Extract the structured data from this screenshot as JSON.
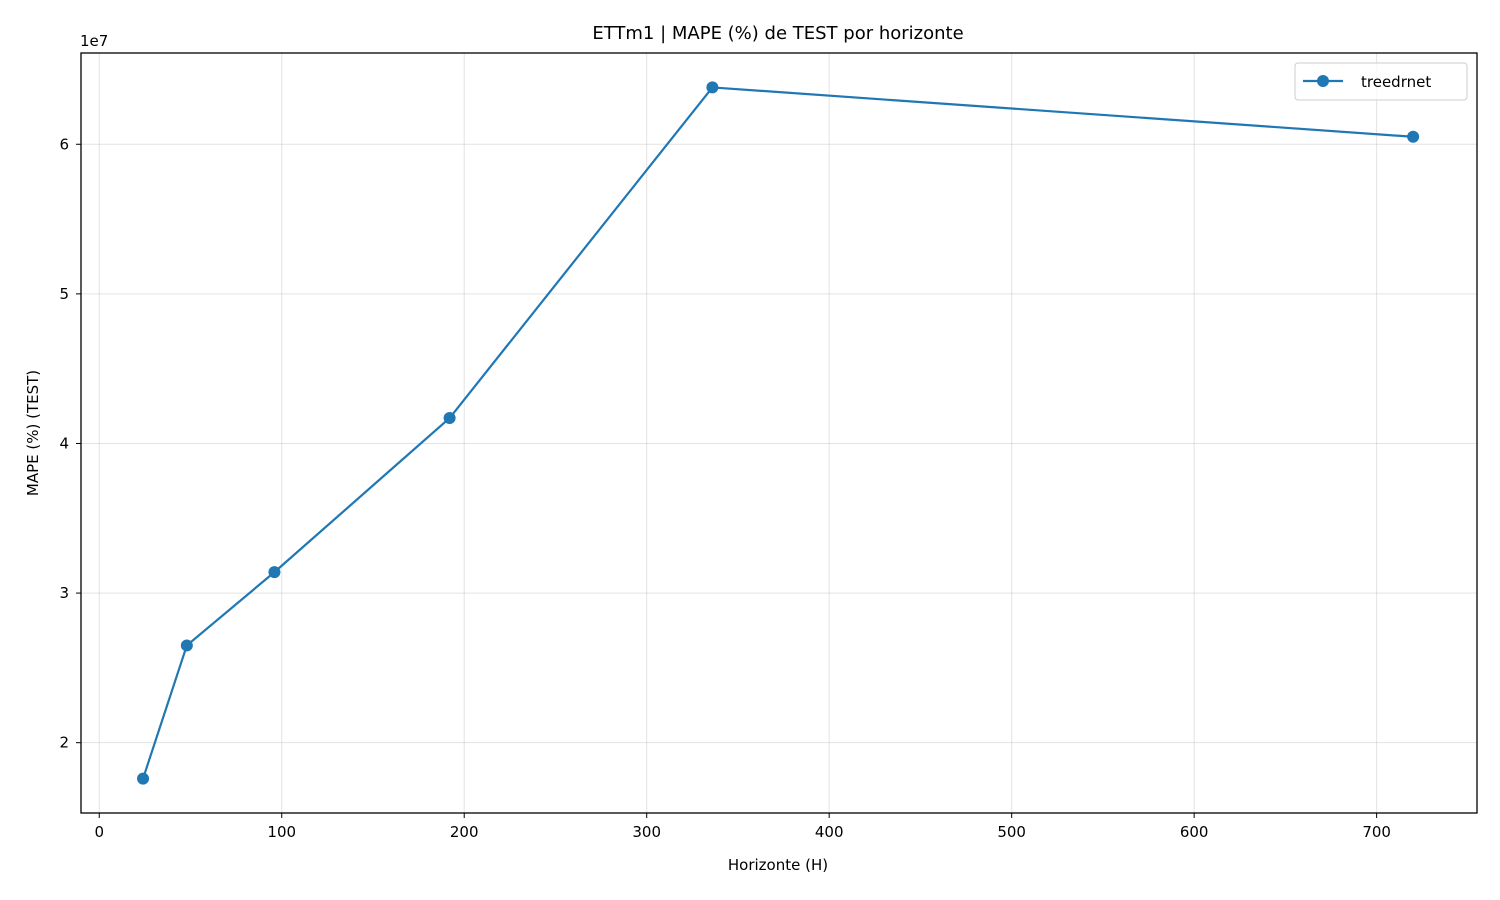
{
  "chart_data": {
    "type": "line",
    "title": "ETTm1 | MAPE (%) de TEST por horizonte",
    "xlabel": "Horizonte (H)",
    "ylabel": "MAPE (%) (TEST)",
    "y_offset_label": "1e7",
    "x": [
      24,
      48,
      96,
      192,
      336,
      720
    ],
    "series": [
      {
        "name": "treedrnet",
        "color": "#1f77b4",
        "values": [
          17600000,
          26500000,
          31400000,
          41700000,
          63800000,
          60500000
        ]
      }
    ],
    "xlim": [
      -10,
      755
    ],
    "ylim": [
      15300000,
      66100000
    ],
    "x_ticks": [
      0,
      100,
      200,
      300,
      400,
      500,
      600,
      700
    ],
    "x_tick_labels": [
      "0",
      "100",
      "200",
      "300",
      "400",
      "500",
      "600",
      "700"
    ],
    "y_ticks": [
      20000000,
      30000000,
      40000000,
      50000000,
      60000000
    ],
    "y_tick_labels": [
      "2",
      "3",
      "4",
      "5",
      "6"
    ],
    "grid": true,
    "legend_position": "top-right"
  }
}
